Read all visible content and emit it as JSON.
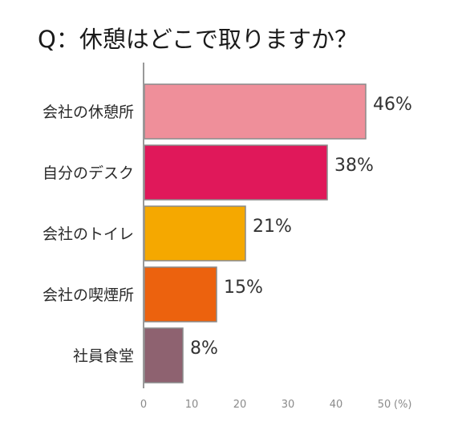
{
  "chart_data": {
    "type": "bar",
    "orientation": "horizontal",
    "title": "Q：休憩はどこで取りますか？",
    "categories": [
      "会社の休憩所",
      "自分のデスク",
      "会社のトイレ",
      "会社の喫煙所",
      "社員食堂"
    ],
    "values": [
      46,
      38,
      21,
      15,
      8
    ],
    "value_labels": [
      "46%",
      "38%",
      "21%",
      "15%",
      "8%"
    ],
    "colors": [
      "#ef8f9a",
      "#e0185a",
      "#f5a800",
      "#ec620e",
      "#8e6270"
    ],
    "xlim": [
      0,
      50
    ],
    "xticks": [
      0,
      10,
      20,
      30,
      40,
      50
    ],
    "xticklabels": [
      "0",
      "10",
      "20",
      "30",
      "40",
      "50"
    ],
    "unit_label": "(%)",
    "grid": false
  }
}
